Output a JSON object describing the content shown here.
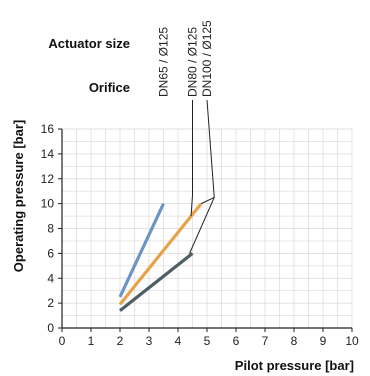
{
  "chart_data": {
    "type": "line",
    "title": "",
    "xlabel": "Pilot pressure [bar]",
    "ylabel": "Operating pressure [bar]",
    "xlim": [
      0,
      10
    ],
    "ylim": [
      0,
      16
    ],
    "x_ticks": [
      0,
      1,
      2,
      3,
      4,
      5,
      6,
      7,
      8,
      9,
      10
    ],
    "y_ticks": [
      0,
      2,
      4,
      6,
      8,
      10,
      12,
      14,
      16
    ],
    "grid": true,
    "legend_headers": {
      "actuator_size": "Actuator size",
      "orifice": "Orifice"
    },
    "series": [
      {
        "name": "DN65 /   Ø125",
        "color": "#6b95c5",
        "points": [
          [
            2.0,
            2.5
          ],
          [
            3.5,
            10.0
          ]
        ]
      },
      {
        "name": "DN80 /   Ø125",
        "color": "#e8a24a",
        "points": [
          [
            2.0,
            1.9
          ],
          [
            4.8,
            10.0
          ]
        ]
      },
      {
        "name": "DN100 / Ø125",
        "color": "#4f5d66",
        "points": [
          [
            2.0,
            1.4
          ],
          [
            4.5,
            6.0
          ]
        ]
      }
    ]
  }
}
